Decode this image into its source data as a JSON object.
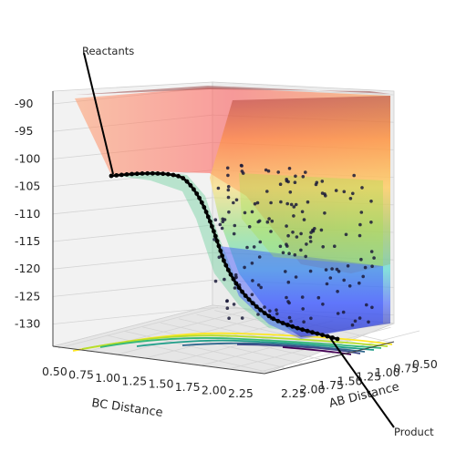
{
  "chart_data": {
    "type": "surface3d",
    "title": "",
    "xlabel": "BC Distance",
    "ylabel": "AB Distance",
    "zlabel": "",
    "x_ticks": [
      "0.50",
      "0.75",
      "1.00",
      "1.25",
      "1.50",
      "1.75",
      "2.00",
      "2.25"
    ],
    "y_ticks": [
      "0.50",
      "0.75",
      "1.00",
      "1.25",
      "1.50",
      "1.75",
      "2.00",
      "2.25"
    ],
    "z_ticks": [
      "-90",
      "-95",
      "-100",
      "-105",
      "-110",
      "-115",
      "-120",
      "-125",
      "-130"
    ],
    "zlim": [
      -132,
      -89
    ],
    "xlim": [
      0.5,
      2.4
    ],
    "ylim": [
      0.5,
      2.4
    ],
    "surface_colormap": "jet",
    "contour_colormap": "viridis",
    "grid": true,
    "annotations": [
      {
        "label": "Reactants",
        "x": 2.3,
        "y": 0.75,
        "z": -104
      },
      {
        "label": "Product",
        "x": 0.75,
        "y": 2.3,
        "z": -131
      }
    ],
    "trajectory": {
      "name": "",
      "color": "#000000",
      "points_bc_ab_energy": [
        [
          2.3,
          0.75,
          -104.2
        ],
        [
          2.15,
          0.75,
          -104.1
        ],
        [
          2.0,
          0.75,
          -104.0
        ],
        [
          1.85,
          0.76,
          -104.0
        ],
        [
          1.7,
          0.77,
          -104.3
        ],
        [
          1.55,
          0.79,
          -105.5
        ],
        [
          1.4,
          0.83,
          -108.5
        ],
        [
          1.25,
          0.9,
          -113.5
        ],
        [
          1.12,
          1.0,
          -118.5
        ],
        [
          1.02,
          1.12,
          -122.5
        ],
        [
          0.95,
          1.25,
          -125.5
        ],
        [
          0.9,
          1.4,
          -127.5
        ],
        [
          0.86,
          1.55,
          -128.8
        ],
        [
          0.82,
          1.7,
          -129.8
        ],
        [
          0.79,
          1.85,
          -130.4
        ],
        [
          0.77,
          2.0,
          -130.8
        ],
        [
          0.76,
          2.15,
          -131.0
        ],
        [
          0.75,
          2.3,
          -131.2
        ]
      ]
    }
  }
}
